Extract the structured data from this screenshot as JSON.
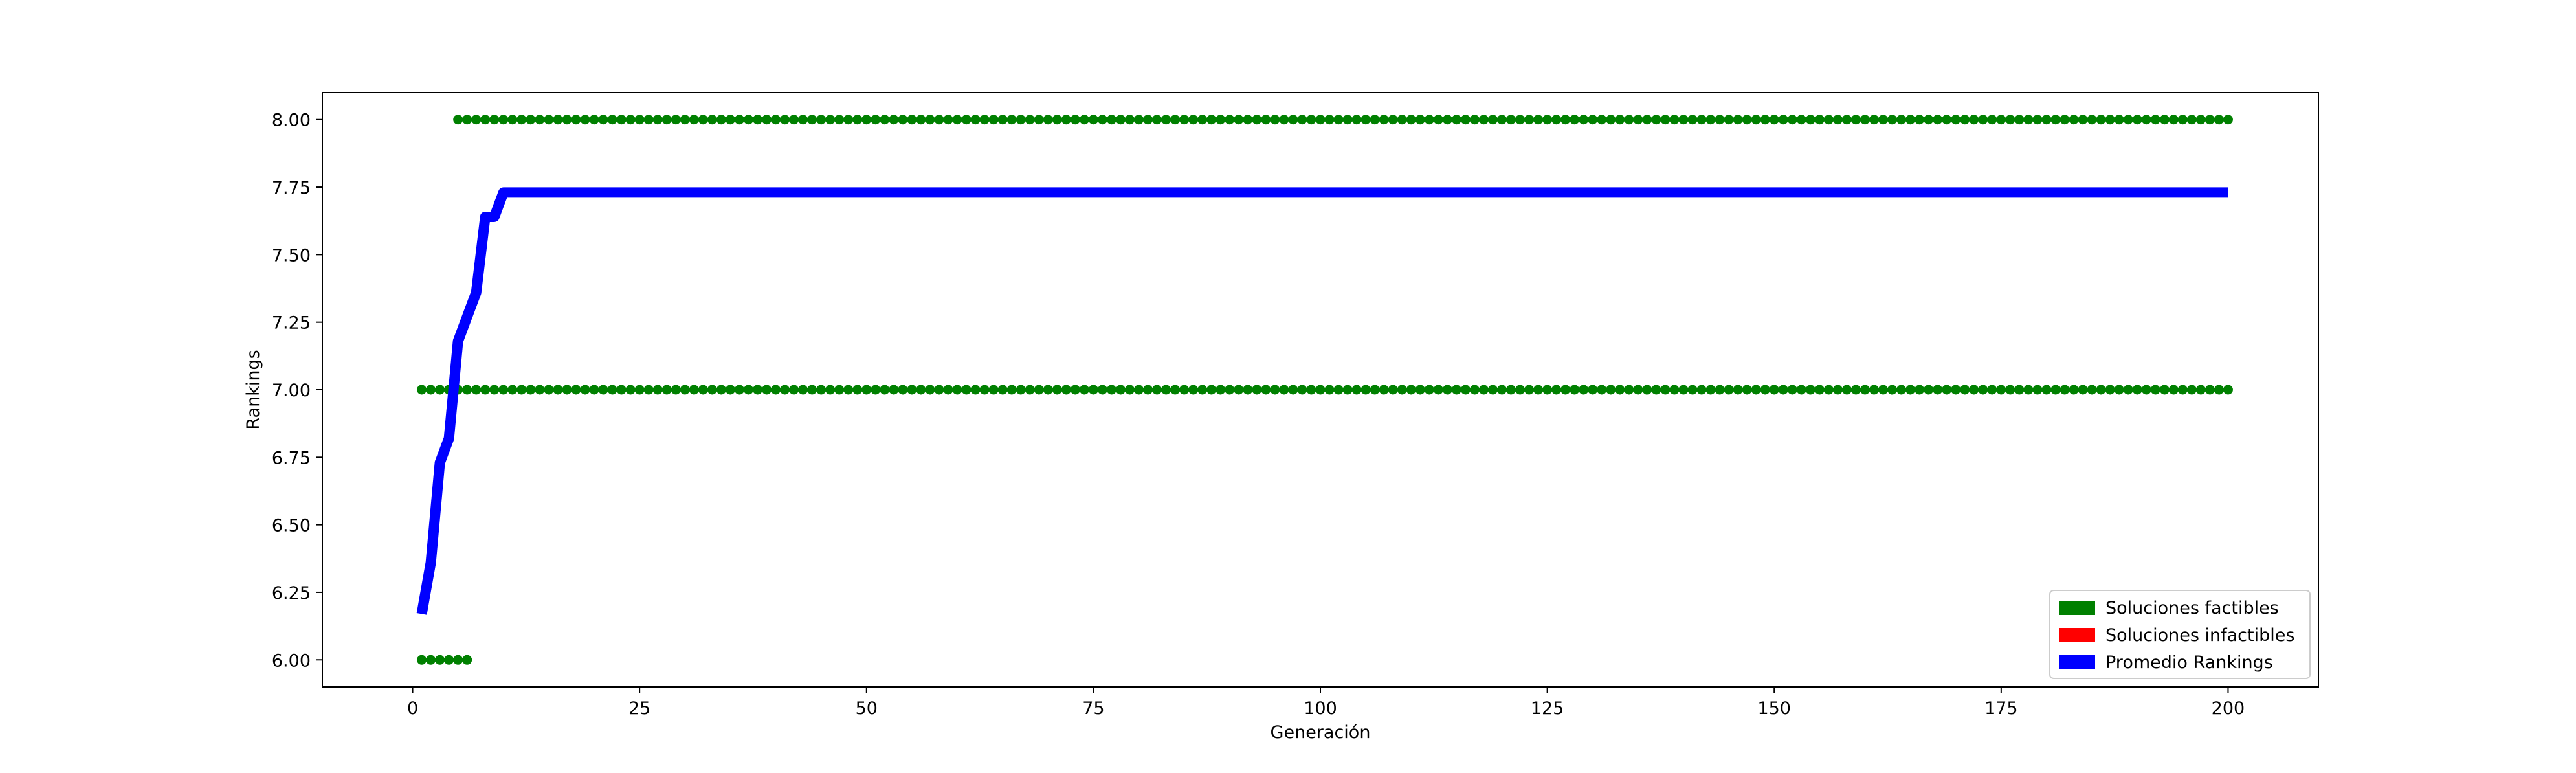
{
  "chart_data": {
    "type": "scatter",
    "title": "",
    "xlabel": "Generación",
    "ylabel": "Rankings",
    "xlim": [
      -9.95,
      209.95
    ],
    "ylim": [
      5.9,
      8.1
    ],
    "x_ticks": [
      0,
      25,
      50,
      75,
      100,
      125,
      150,
      175,
      200
    ],
    "y_ticks": [
      6.0,
      6.25,
      6.5,
      6.75,
      7.0,
      7.25,
      7.5,
      7.75,
      8.0
    ],
    "grid": false,
    "legend_position": "lower-right",
    "series": [
      {
        "name": "Soluciones factibles",
        "kind": "scatter",
        "color": "#008000",
        "points": [
          {
            "x_from": 1,
            "x_to": 6,
            "y": 6.0
          },
          {
            "x_from": 1,
            "x_to": 200,
            "y": 7.0
          },
          {
            "x_from": 5,
            "x_to": 200,
            "y": 8.0
          }
        ]
      },
      {
        "name": "Soluciones infactibles",
        "kind": "scatter",
        "color": "#ff0000",
        "points": []
      },
      {
        "name": "Promedio Rankings",
        "kind": "line",
        "color": "#0000ff",
        "x": [
          1,
          2,
          3,
          4,
          5,
          6,
          7,
          8,
          9,
          10,
          200
        ],
        "y": [
          6.17,
          6.36,
          6.73,
          6.82,
          7.18,
          7.27,
          7.36,
          7.64,
          7.64,
          7.73,
          7.73
        ]
      }
    ],
    "legend": [
      {
        "label": "Soluciones factibles",
        "color": "#008000"
      },
      {
        "label": "Soluciones infactibles",
        "color": "#ff0000"
      },
      {
        "label": "Promedio Rankings",
        "color": "#0000ff"
      }
    ]
  }
}
